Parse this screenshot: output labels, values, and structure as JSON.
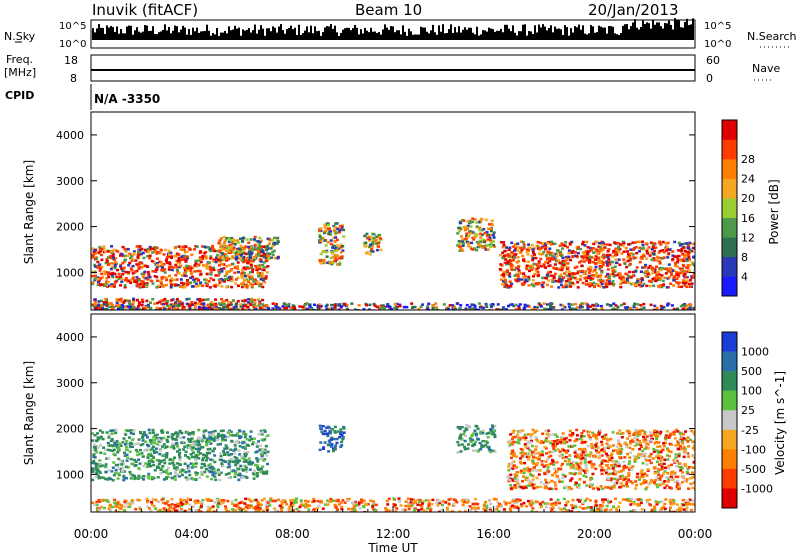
{
  "header": {
    "title": "Inuvik (fitACF)",
    "beam": "Beam 10",
    "date": "20/Jan/2013"
  },
  "summary_panels": {
    "nsky_label": "N.Sky",
    "nsearch_label": "N.Search",
    "nsky_ticks": [
      "10^5",
      "10^0"
    ],
    "nsearch_ticks": [
      "10^5",
      "10^0"
    ],
    "freq_label": "Freq.",
    "freq_unit": "[MHz]",
    "freq_ticks": [
      "18",
      "8"
    ],
    "nave_label": "Nave",
    "nave_ticks": [
      "60",
      "0"
    ],
    "cpid_label": "CPID",
    "cpid_value": "N/A -3350"
  },
  "chart_data": [
    {
      "type": "heatmap",
      "panel": "power",
      "ylabel": "Slant Range [km]",
      "ylim": [
        180,
        4500
      ],
      "yticks": [
        "1000",
        "2000",
        "3000",
        "4000"
      ],
      "xlim_hours": [
        0,
        24
      ],
      "colorbar": {
        "label": "Power [dB]",
        "ticks": [
          "4",
          "8",
          "12",
          "16",
          "20",
          "24",
          "28"
        ],
        "colors": [
          "#1a1aff",
          "#2838b8",
          "#2f6f4f",
          "#4a9a4a",
          "#9acd32",
          "#f5a623",
          "#ff7f00",
          "#ff3c00",
          "#e00000"
        ]
      },
      "regions": [
        {
          "t": [
            0.0,
            7.2
          ],
          "r": [
            180,
            450
          ],
          "level": "strong"
        },
        {
          "t": [
            0.0,
            7.0
          ],
          "r": [
            700,
            1600
          ],
          "level": "strong"
        },
        {
          "t": [
            5.0,
            7.4
          ],
          "r": [
            1300,
            1800
          ],
          "level": "medium"
        },
        {
          "t": [
            9.0,
            10.0
          ],
          "r": [
            1200,
            2100
          ],
          "level": "medium"
        },
        {
          "t": [
            10.8,
            11.5
          ],
          "r": [
            1400,
            1900
          ],
          "level": "medium"
        },
        {
          "t": [
            14.5,
            16.0
          ],
          "r": [
            1500,
            2200
          ],
          "level": "medium"
        },
        {
          "t": [
            16.2,
            24.0
          ],
          "r": [
            700,
            1700
          ],
          "level": "strong"
        },
        {
          "t": [
            0.0,
            24.0
          ],
          "r": [
            180,
            350
          ],
          "level": "weak"
        }
      ]
    },
    {
      "type": "heatmap",
      "panel": "velocity",
      "ylabel": "Slant Range [km]",
      "ylim": [
        180,
        4500
      ],
      "yticks": [
        "1000",
        "2000",
        "3000",
        "4000"
      ],
      "xlim_hours": [
        0,
        24
      ],
      "colorbar": {
        "label": "Velocity [m s^-1]",
        "ticks": [
          "1000",
          "500",
          "100",
          "25",
          "-25",
          "-100",
          "-500",
          "-1000"
        ],
        "colors": [
          "#1c3cd6",
          "#2a6fa8",
          "#2e8b57",
          "#5cc040",
          "#c8c8c8",
          "#f5a623",
          "#ff7f00",
          "#ff3c00",
          "#e00000"
        ]
      },
      "regions": [
        {
          "t": [
            0.0,
            7.0
          ],
          "r": [
            900,
            2000
          ],
          "level": "green"
        },
        {
          "t": [
            9.0,
            10.0
          ],
          "r": [
            1500,
            2100
          ],
          "level": "blue"
        },
        {
          "t": [
            14.5,
            16.0
          ],
          "r": [
            1500,
            2100
          ],
          "level": "green"
        },
        {
          "t": [
            16.5,
            24.0
          ],
          "r": [
            700,
            2000
          ],
          "level": "orange"
        },
        {
          "t": [
            0.0,
            24.0
          ],
          "r": [
            180,
            500
          ],
          "level": "orange"
        }
      ]
    }
  ],
  "time_axis": {
    "ticks": [
      "00:00",
      "04:00",
      "08:00",
      "12:00",
      "16:00",
      "20:00",
      "00:00"
    ],
    "label": "Time UT"
  }
}
